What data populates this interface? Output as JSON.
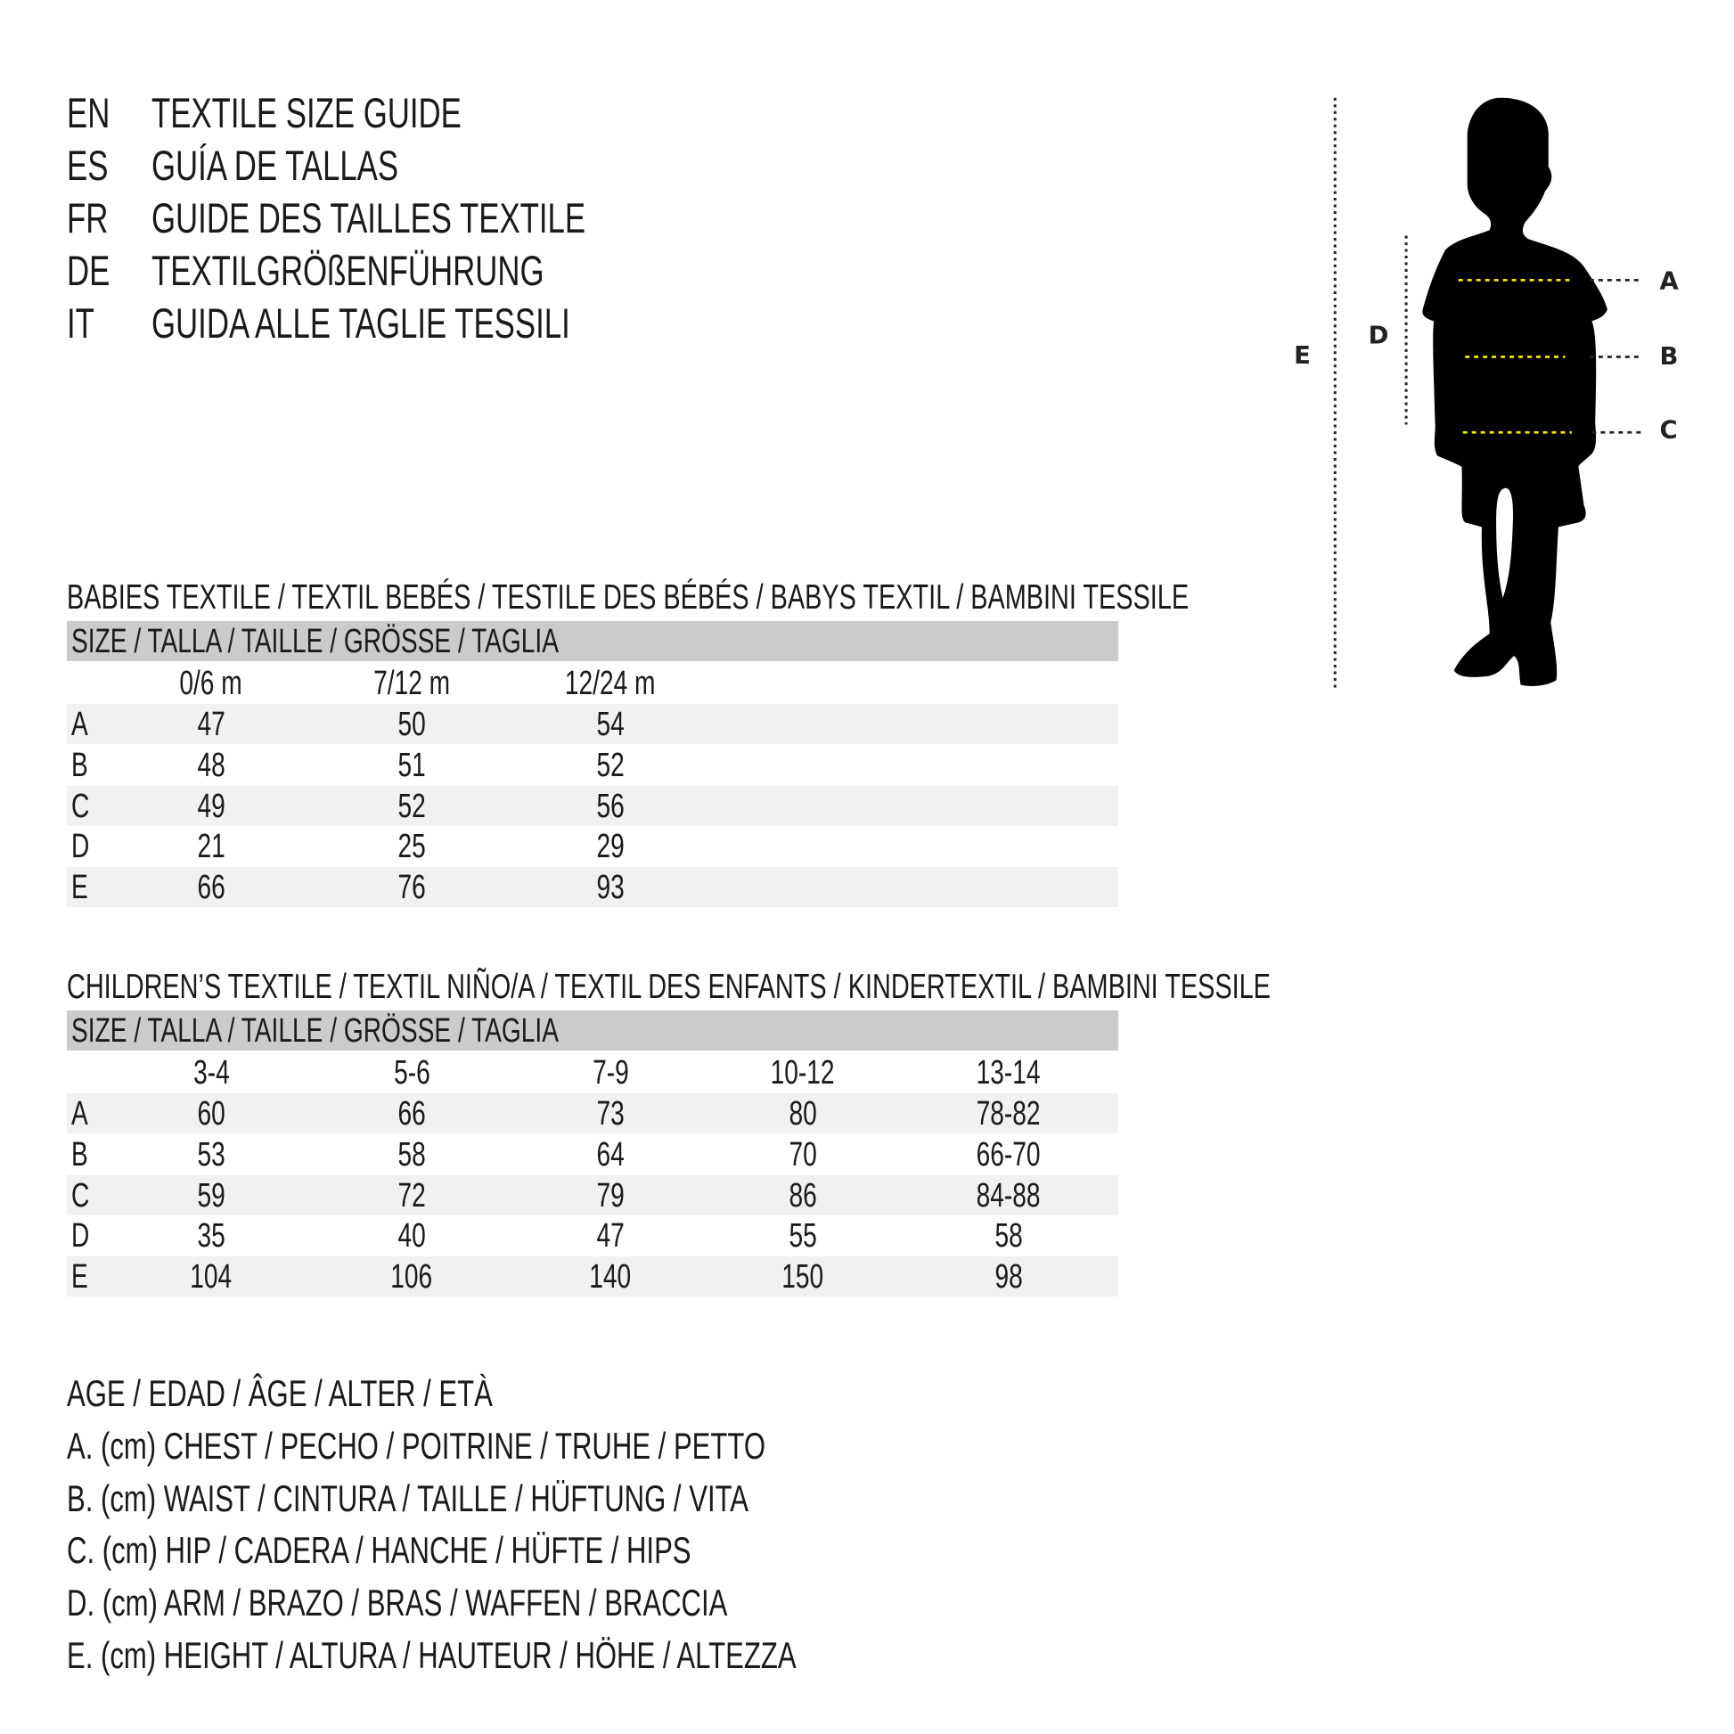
{
  "titles": [
    {
      "lang": "EN",
      "text": "TEXTILE SIZE GUIDE"
    },
    {
      "lang": "ES",
      "text": "GUÍA DE TALLAS"
    },
    {
      "lang": "FR",
      "text": "GUIDE DES TAILLES TEXTILE"
    },
    {
      "lang": "DE",
      "text": "TEXTILGRÖßENFÜHRUNG"
    },
    {
      "lang": "IT",
      "text": "GUIDA ALLE TAGLIE TESSILI"
    }
  ],
  "figure": {
    "labels": {
      "A": "A",
      "B": "B",
      "C": "C",
      "D": "D",
      "E": "E"
    },
    "colors": {
      "silhouette": "#000000",
      "measure_line": "#f2e600",
      "guide_line": "#222222"
    }
  },
  "babies": {
    "heading": "BABIES TEXTILE / TEXTIL BEBÉS / TESTILE DES BÉBÉS / BABYS TEXTIL / BAMBINI TESSILE",
    "size_header": "SIZE / TALLA / TAILLE / GRÖSSE / TAGLIA",
    "columns": [
      "0/6 m",
      "7/12 m",
      "12/24 m"
    ],
    "rows": [
      {
        "label": "A",
        "values": [
          "47",
          "50",
          "54"
        ]
      },
      {
        "label": "B",
        "values": [
          "48",
          "51",
          "52"
        ]
      },
      {
        "label": "C",
        "values": [
          "49",
          "52",
          "56"
        ]
      },
      {
        "label": "D",
        "values": [
          "21",
          "25",
          "29"
        ]
      },
      {
        "label": "E",
        "values": [
          "66",
          "76",
          "93"
        ]
      }
    ]
  },
  "children": {
    "heading": "CHILDREN’S TEXTILE / TEXTIL NIÑO/A / TEXTIL DES ENFANTS / KINDERTEXTIL / BAMBINI TESSILE",
    "size_header": "SIZE / TALLA / TAILLE / GRÖSSE / TAGLIA",
    "columns": [
      "3-4",
      "5-6",
      "7-9",
      "10-12",
      "13-14"
    ],
    "rows": [
      {
        "label": "A",
        "values": [
          "60",
          "66",
          "73",
          "80",
          "78-82"
        ]
      },
      {
        "label": "B",
        "values": [
          "53",
          "58",
          "64",
          "70",
          "66-70"
        ]
      },
      {
        "label": "C",
        "values": [
          "59",
          "72",
          "79",
          "86",
          "84-88"
        ]
      },
      {
        "label": "D",
        "values": [
          "35",
          "40",
          "47",
          "55",
          "58"
        ]
      },
      {
        "label": "E",
        "values": [
          "104",
          "106",
          "140",
          "150",
          "98"
        ]
      }
    ]
  },
  "legend": [
    "AGE / EDAD / ÂGE / ALTER / ETÀ",
    "A. (cm) CHEST / PECHO / POITRINE / TRUHE / PETTO",
    "B. (cm) WAIST / CINTURA / TAILLE / HÜFTUNG / VITA",
    "C. (cm) HIP / CADERA / HANCHE / HÜFTE / HIPS",
    "D. (cm) ARM / BRAZO / BRAS / WAFFEN / BRACCIA",
    "E. (cm) HEIGHT / ALTURA / HAUTEUR / HÖHE / ALTEZZA"
  ]
}
